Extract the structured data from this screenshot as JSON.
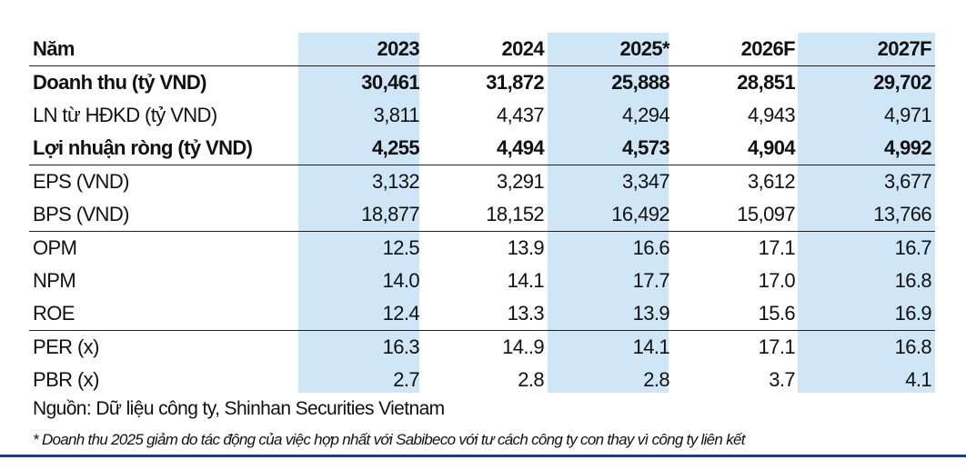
{
  "table": {
    "header": {
      "label": "Năm",
      "values": [
        "2023",
        "2024",
        "2025*",
        "2026F",
        "2027F"
      ]
    },
    "rows": [
      {
        "label": "Doanh thu (tỷ VND)",
        "values": [
          "30,461",
          "31,872",
          "25,888",
          "28,851",
          "29,702"
        ]
      },
      {
        "label": "LN từ HĐKD (tỷ VND)",
        "values": [
          "3,811",
          "4,437",
          "4,294",
          "4,943",
          "4,971"
        ]
      },
      {
        "label": "Lợi nhuận ròng (tỷ VND)",
        "values": [
          "4,255",
          "4,494",
          "4,573",
          "4,904",
          "4,992"
        ]
      },
      {
        "label": "EPS (VND)",
        "values": [
          "3,132",
          "3,291",
          "3,347",
          "3,612",
          "3,677"
        ]
      },
      {
        "label": "BPS (VND)",
        "values": [
          "18,877",
          "18,152",
          "16,492",
          "15,097",
          "13,766"
        ]
      },
      {
        "label": "OPM",
        "values": [
          "12.5",
          "13.9",
          "16.6",
          "17.1",
          "16.7"
        ]
      },
      {
        "label": "NPM",
        "values": [
          "14.0",
          "14.1",
          "17.7",
          "17.0",
          "16.8"
        ]
      },
      {
        "label": "ROE",
        "values": [
          "12.4",
          "13.3",
          "13.9",
          "15.6",
          "16.9"
        ]
      },
      {
        "label": "PER (x)",
        "values": [
          "16.3",
          "14..9",
          "14.1",
          "17.1",
          "16.8"
        ]
      },
      {
        "label": "PBR (x)",
        "values": [
          "2.7",
          "2.8",
          "2.8",
          "3.7",
          "4.1"
        ]
      }
    ]
  },
  "source": "Nguồn: Dữ liệu công ty, Shinhan Securities Vietnam",
  "note": "* Doanh thu 2025 giảm do tác động của việc hợp nhất với Sabibeco với tư cách công ty con thay vì công ty liên kết",
  "colors": {
    "column_highlight": "#cfe6f7",
    "bottom_rule": "#1e3a8a"
  }
}
